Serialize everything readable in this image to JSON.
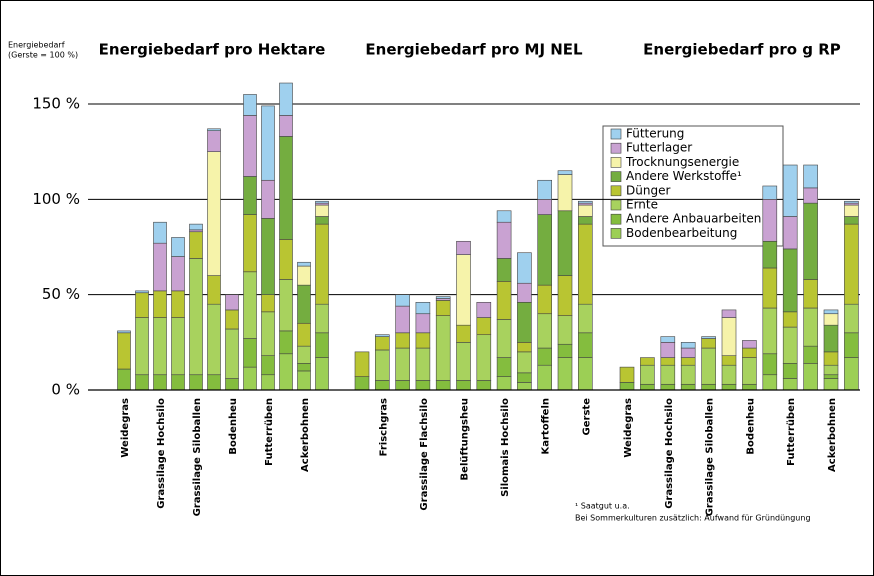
{
  "chart_data": {
    "type": "stacked_bar",
    "ylabel": "Energiebedarf",
    "ylabel_note": "(Gerste = 100 %)",
    "group_titles": [
      "Energiebedarf pro Hektare",
      "Energiebedarf pro MJ NEL",
      "Energiebedarf pro g RP"
    ],
    "ylim": [
      0,
      170
    ],
    "yticks": [
      {
        "value": 0,
        "label": "0 %"
      },
      {
        "value": 50,
        "label": "50 %"
      },
      {
        "value": 100,
        "label": "100 %"
      },
      {
        "value": 150,
        "label": "150 %"
      }
    ],
    "grid": true,
    "categories": [
      "Weidegras",
      null,
      "Grassilage Hochsilo",
      null,
      "Grassilage Siloballen",
      null,
      "Bodenheu",
      null,
      "Futterrüben",
      null,
      "Ackerbohnen",
      null,
      null,
      "Frischgras",
      null,
      "Grassilage Flachsilo",
      null,
      "Belüftungsheu",
      null,
      "Silomais Hochsilo",
      null,
      "Kartoffeln",
      null,
      "Gerste",
      "Weidegras",
      null,
      "Grassilage Hochsilo",
      null,
      "Grassilage Siloballen",
      null,
      "Bodenheu",
      null,
      "Futterrüben",
      null,
      "Ackerbohnen",
      null
    ],
    "series": [
      {
        "name": "Bodenbearbeitung",
        "color": "#9ccf55",
        "values": [
          0,
          0,
          0,
          0,
          0,
          0,
          0,
          12,
          8,
          19,
          10,
          17,
          0,
          0,
          0,
          0,
          0,
          0,
          0,
          7,
          4,
          13,
          17,
          17,
          0,
          0,
          0,
          0,
          0,
          0,
          0,
          8,
          6,
          14,
          6,
          17
        ]
      },
      {
        "name": "Andere Anbauarbeiten",
        "color": "#84bd3e",
        "values": [
          11,
          8,
          8,
          8,
          8,
          8,
          6,
          15,
          10,
          12,
          4,
          13,
          7,
          5,
          5,
          5,
          5,
          5,
          5,
          10,
          5,
          9,
          7,
          13,
          4,
          3,
          3,
          3,
          3,
          3,
          3,
          11,
          8,
          9,
          2,
          13
        ]
      },
      {
        "name": "Ernte",
        "color": "#a8d25e",
        "values": [
          0,
          30,
          30,
          30,
          61,
          37,
          26,
          35,
          23,
          27,
          9,
          15,
          0,
          16,
          17,
          17,
          34,
          20,
          24,
          20,
          11,
          18,
          15,
          15,
          0,
          10,
          10,
          10,
          19,
          10,
          14,
          24,
          19,
          20,
          5,
          15
        ]
      },
      {
        "name": "Dünger",
        "color": "#b9c532",
        "values": [
          19,
          13,
          14,
          14,
          14,
          15,
          10,
          30,
          9,
          21,
          12,
          42,
          13,
          7,
          8,
          8,
          8,
          9,
          9,
          20,
          5,
          15,
          21,
          42,
          8,
          4,
          4,
          4,
          5,
          5,
          5,
          21,
          8,
          15,
          7,
          42
        ]
      },
      {
        "name": "Andere Werkstoffe¹",
        "color": "#74ad40",
        "values": [
          0,
          0,
          0,
          0,
          0,
          0,
          0,
          20,
          40,
          54,
          20,
          4,
          0,
          0,
          0,
          0,
          0,
          0,
          0,
          12,
          21,
          37,
          34,
          4,
          0,
          0,
          0,
          0,
          0,
          0,
          0,
          14,
          33,
          40,
          14,
          4
        ]
      },
      {
        "name": "Trocknungsenergie",
        "color": "#f6f3aa",
        "values": [
          0,
          0,
          0,
          0,
          0,
          65,
          0,
          0,
          0,
          0,
          10,
          6,
          0,
          0,
          0,
          0,
          0,
          37,
          0,
          0,
          0,
          0,
          19,
          6,
          0,
          0,
          0,
          0,
          0,
          20,
          0,
          0,
          0,
          0,
          6,
          6
        ]
      },
      {
        "name": "Futterlager",
        "color": "#c9a2d2",
        "values": [
          0,
          0,
          25,
          18,
          1,
          11,
          8,
          32,
          20,
          11,
          0,
          1,
          0,
          0,
          14,
          10,
          1,
          7,
          8,
          19,
          10,
          8,
          0,
          1,
          0,
          0,
          8,
          5,
          0,
          4,
          4,
          22,
          17,
          8,
          0,
          1
        ]
      },
      {
        "name": "Fütterung",
        "color": "#9fd0ee",
        "values": [
          1,
          1,
          11,
          10,
          3,
          1,
          0,
          11,
          39,
          17,
          2,
          1,
          0,
          1,
          6,
          6,
          1,
          0,
          0,
          6,
          16,
          10,
          2,
          1,
          0,
          0,
          3,
          3,
          1,
          0,
          0,
          7,
          27,
          12,
          2,
          1
        ]
      }
    ],
    "footnotes": [
      "¹ Saatgut u.a.",
      "Bei Sommerkulturen zusätzlich: Aufwand für Gründüngung"
    ]
  }
}
